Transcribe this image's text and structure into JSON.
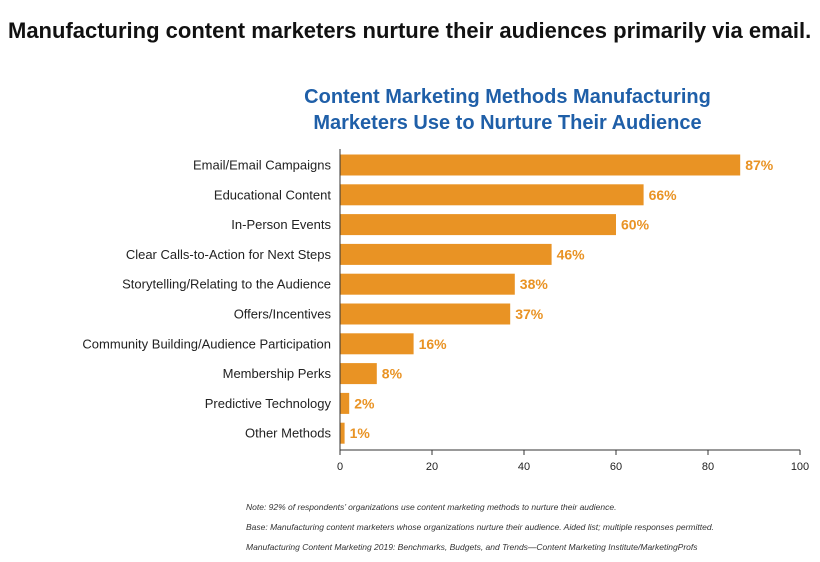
{
  "headline": "Manufacturing content marketers nurture their audiences primarily via email.",
  "colors": {
    "bar": "#E99324",
    "label": "#E99324",
    "title": "#1F5FA8",
    "text": "#222222",
    "axis": "#333333"
  },
  "chart_data": {
    "type": "bar",
    "orientation": "horizontal",
    "title_lines": [
      "Content Marketing Methods Manufacturing",
      "Marketers Use to Nurture Their Audience"
    ],
    "categories": [
      "Email/Email Campaigns",
      "Educational Content",
      "In-Person Events",
      "Clear Calls-to-Action for Next Steps",
      "Storytelling/Relating to the Audience",
      "Offers/Incentives",
      "Community Building/Audience Participation",
      "Membership Perks",
      "Predictive Technology",
      "Other Methods"
    ],
    "values": [
      87,
      66,
      60,
      46,
      38,
      37,
      16,
      8,
      2,
      1
    ],
    "value_labels": [
      "87%",
      "66%",
      "60%",
      "46%",
      "38%",
      "37%",
      "16%",
      "8%",
      "2%",
      "1%"
    ],
    "xlim": [
      0,
      100
    ],
    "xticks": [
      "0",
      "20",
      "40",
      "60",
      "80",
      "100"
    ],
    "grid": false,
    "legend": "none"
  },
  "notes": [
    "Note: 92% of respondents’ organizations use content marketing methods to nurture their audience.",
    "Base: Manufacturing content marketers whose organizations nurture their audience. Aided list; multiple responses permitted.",
    "Manufacturing Content Marketing 2019: Benchmarks, Budgets, and Trends—Content Marketing Institute/MarketingProfs"
  ]
}
